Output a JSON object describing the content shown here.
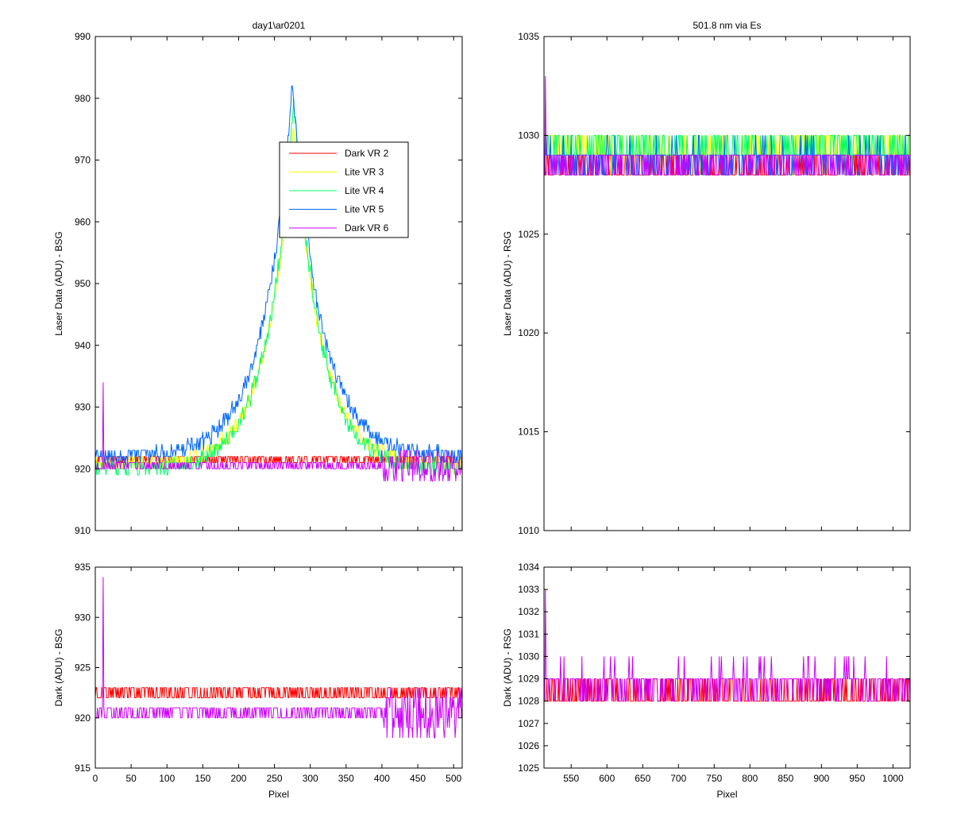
{
  "figure": {
    "background": "#ffffff",
    "series_colors": {
      "Dark VR 2": "#ff0000",
      "Lite VR 3": "#ffff00",
      "Lite VR 4": "#00ff66",
      "Lite VR 5": "#0066ff",
      "Dark VR 6": "#cc00ff"
    }
  },
  "chart_data": [
    {
      "id": "bsg-laser",
      "type": "line",
      "title": "day1\\ar0201",
      "xlabel": "",
      "ylabel": "Laser Data (ADU) - BSG",
      "xlim": [
        0,
        512
      ],
      "ylim": [
        910,
        990
      ],
      "xticks": [
        0,
        50,
        100,
        150,
        200,
        250,
        300,
        350,
        400,
        450,
        500
      ],
      "xtick_labels_shown": false,
      "yticks": [
        910,
        920,
        930,
        940,
        950,
        960,
        970,
        980,
        990
      ],
      "legend": {
        "placement": "inside-top-center",
        "entries": [
          "Dark VR 2",
          "Lite VR 3",
          "Lite VR 4",
          "Lite VR 5",
          "Dark VR 6"
        ]
      },
      "series": [
        {
          "name": "Dark VR 2",
          "model": "flat",
          "base": 921.5,
          "noise": 1.0,
          "from": 0,
          "to": 512
        },
        {
          "name": "Lite VR 3",
          "model": "peak",
          "base": 920.5,
          "peak": 976,
          "center": 277,
          "width": 38,
          "noise": 1.2,
          "from": 0,
          "to": 512
        },
        {
          "name": "Lite VR 4",
          "model": "peak",
          "base": 920,
          "peak": 979,
          "center": 277,
          "width": 37,
          "noise": 1.3,
          "from": 0,
          "to": 512
        },
        {
          "name": "Lite VR 5",
          "model": "peak",
          "base": 922,
          "peak": 982,
          "center": 275,
          "width": 40,
          "noise": 1.3,
          "from": 0,
          "to": 512
        },
        {
          "name": "Dark VR 6",
          "model": "flat",
          "base": 920.5,
          "noise": 1.0,
          "spike_x": 11,
          "spike_y": 934,
          "tail_noise_from": 400,
          "tail_noise": 2.5,
          "from": 0,
          "to": 512
        }
      ]
    },
    {
      "id": "rsg-laser",
      "type": "line",
      "title": "501.8 nm via Es",
      "xlabel": "",
      "ylabel": "Laser Data (ADU) - RSG",
      "xlim": [
        512,
        1024
      ],
      "ylim": [
        1010,
        1035
      ],
      "xticks": [
        550,
        600,
        650,
        700,
        750,
        800,
        850,
        900,
        950,
        1000
      ],
      "xtick_labels_shown": false,
      "yticks": [
        1010,
        1015,
        1020,
        1025,
        1030,
        1035
      ],
      "series": [
        {
          "name": "Dark VR 2",
          "model": "flat",
          "base": 1028.3,
          "noise": 0.8,
          "from": 512,
          "to": 1024
        },
        {
          "name": "Lite VR 3",
          "model": "flat",
          "base": 1029.2,
          "noise": 0.8,
          "from": 512,
          "to": 1024
        },
        {
          "name": "Lite VR 4",
          "model": "flat",
          "base": 1029.3,
          "noise": 0.8,
          "from": 512,
          "to": 1024
        },
        {
          "name": "Lite VR 5",
          "model": "flat",
          "base": 1028.8,
          "noise": 0.8,
          "from": 512,
          "to": 1024
        },
        {
          "name": "Dark VR 6",
          "model": "flat",
          "base": 1028.6,
          "noise": 0.8,
          "spike_x": 514,
          "spike_y": 1033,
          "from": 512,
          "to": 1024
        }
      ]
    },
    {
      "id": "bsg-dark",
      "type": "line",
      "title": "",
      "xlabel": "Pixel",
      "ylabel": "Dark (ADU) - BSG",
      "xlim": [
        0,
        512
      ],
      "ylim": [
        915,
        935
      ],
      "xticks": [
        0,
        50,
        100,
        150,
        200,
        250,
        300,
        350,
        400,
        450,
        500
      ],
      "xtick_labels_shown": true,
      "yticks": [
        915,
        920,
        925,
        930,
        935
      ],
      "series": [
        {
          "name": "Dark VR 2",
          "model": "flat",
          "base": 922.5,
          "noise": 0.9,
          "from": 0,
          "to": 512
        },
        {
          "name": "Dark VR 6",
          "model": "flat",
          "base": 920.5,
          "noise": 0.9,
          "spike_x": 11,
          "spike_y": 934,
          "tail_noise_from": 400,
          "tail_noise": 2.5,
          "from": 0,
          "to": 512
        }
      ]
    },
    {
      "id": "rsg-dark",
      "type": "line",
      "title": "",
      "xlabel": "Pixel",
      "ylabel": "Dark (ADU) - RSG",
      "xlim": [
        512,
        1024
      ],
      "ylim": [
        1025,
        1034
      ],
      "xticks": [
        550,
        600,
        650,
        700,
        750,
        800,
        850,
        900,
        950,
        1000
      ],
      "xtick_labels_shown": true,
      "yticks": [
        1025,
        1026,
        1027,
        1028,
        1029,
        1030,
        1031,
        1032,
        1033,
        1034
      ],
      "series": [
        {
          "name": "Dark VR 2",
          "model": "flat",
          "base": 1028.3,
          "noise": 0.8,
          "from": 512,
          "to": 1024
        },
        {
          "name": "Dark VR 6",
          "model": "flat",
          "base": 1028.8,
          "noise": 0.8,
          "spike_x": 514,
          "spike_y": 1033,
          "from": 512,
          "to": 1024
        }
      ]
    }
  ]
}
